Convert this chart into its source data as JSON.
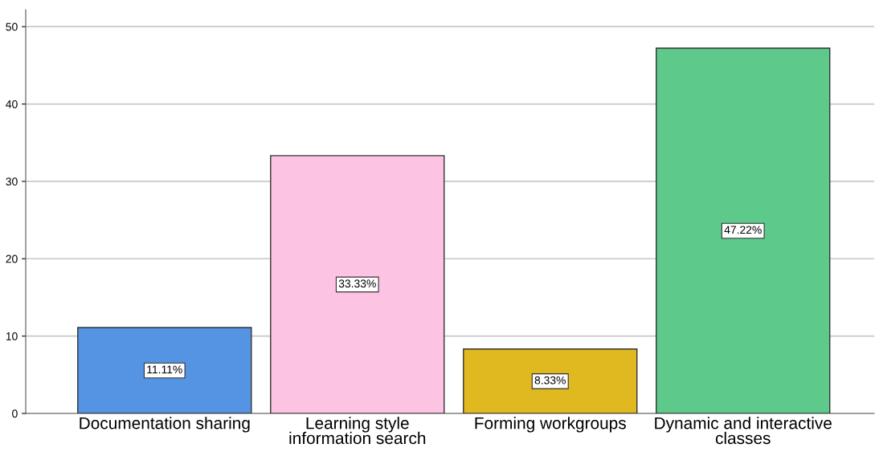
{
  "chart_data": {
    "type": "bar",
    "categories": [
      "Documentation sharing",
      "Learning style\ninformation search",
      "Forming workgroups",
      "Dynamic and interactive\nclasses"
    ],
    "values": [
      11.11,
      33.33,
      8.33,
      47.22
    ],
    "colors": [
      "#5593e3",
      "#fdc3e3",
      "#e0b81f",
      "#5dc98a"
    ],
    "value_labels": [
      "11.11%",
      "33.33%",
      "8.33%",
      "47.22%"
    ],
    "ylim": [
      0,
      52.2
    ],
    "yticks": [
      0,
      10,
      20,
      30,
      40,
      50
    ],
    "grid": "y"
  }
}
